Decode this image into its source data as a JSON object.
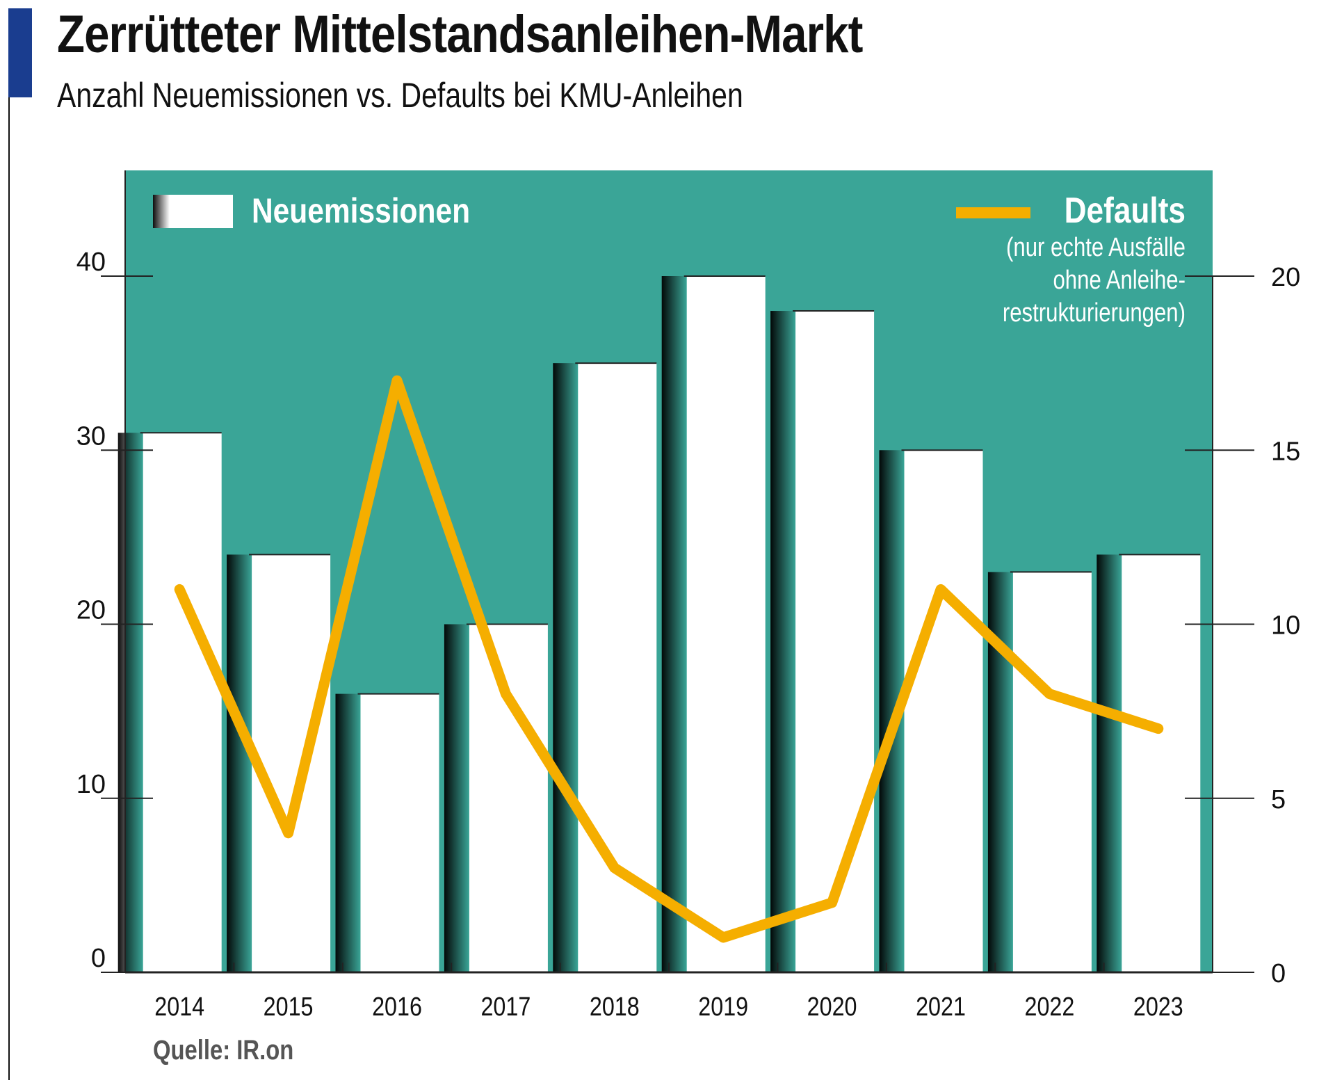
{
  "title": "Zerrütteter Mittelstandsanleihen-Markt",
  "subtitle": "Anzahl Neuemissionen vs. Defaults bei KMU-Anleihen",
  "source": "Quelle: IR.on",
  "colors": {
    "background_panel": "#3aa597",
    "bars": "#ffffff",
    "line": "#f5ae00",
    "accent": "#1a3d8f"
  },
  "chart_data": {
    "type": "bar+line",
    "categories": [
      "2014",
      "2015",
      "2016",
      "2017",
      "2018",
      "2019",
      "2020",
      "2021",
      "2022",
      "2023"
    ],
    "series": [
      {
        "name": "Neuemissionen",
        "type": "bar",
        "axis": "left",
        "values": [
          31,
          24,
          16,
          20,
          35,
          40,
          38,
          30,
          23,
          24
        ]
      },
      {
        "name": "Defaults",
        "note": "(nur echte Ausfälle ohne Anleihe- restrukturierungen)",
        "type": "line",
        "axis": "right",
        "values": [
          11,
          4,
          17,
          8,
          3,
          1,
          2,
          11,
          8,
          7
        ]
      }
    ],
    "left_axis": {
      "range": [
        0,
        40
      ],
      "ticks": [
        "0",
        "10",
        "20",
        "30",
        "40"
      ]
    },
    "right_axis": {
      "range": [
        0,
        20
      ],
      "ticks": [
        "0",
        "5",
        "10",
        "15",
        "20"
      ]
    },
    "grid": false,
    "legend": "top"
  }
}
